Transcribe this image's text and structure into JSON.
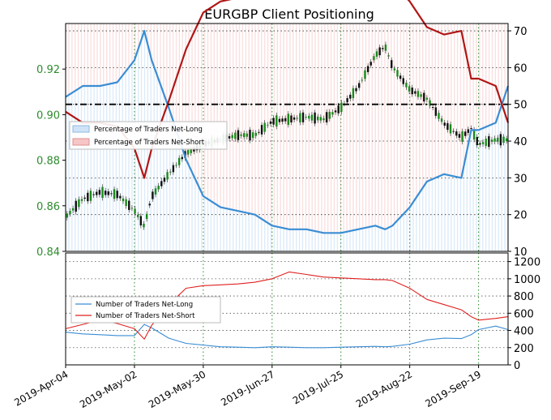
{
  "chart_data": [
    {
      "panel": "top",
      "type": "line",
      "title": "EURGBP Client Positioning",
      "x": [
        "2019-Apr-04",
        "2019-Apr-11",
        "2019-Apr-18",
        "2019-Apr-25",
        "2019-May-02",
        "2019-May-06",
        "2019-May-09",
        "2019-May-16",
        "2019-May-23",
        "2019-May-30",
        "2019-Jun-06",
        "2019-Jun-13",
        "2019-Jun-20",
        "2019-Jun-27",
        "2019-Jul-04",
        "2019-Jul-11",
        "2019-Jul-18",
        "2019-Jul-25",
        "2019-Aug-01",
        "2019-Aug-08",
        "2019-Aug-12",
        "2019-Aug-15",
        "2019-Aug-22",
        "2019-Aug-29",
        "2019-Sep-05",
        "2019-Sep-12",
        "2019-Sep-16",
        "2019-Sep-19",
        "2019-Sep-26",
        "2019-Oct-01"
      ],
      "price_axis": {
        "side": "left",
        "ylim": [
          0.84,
          0.94
        ],
        "ticks": [
          "0.84",
          "0.86",
          "0.88",
          "0.90",
          "0.92"
        ],
        "color": "#2e8b2e"
      },
      "percent_axis": {
        "side": "right",
        "ylim": [
          10,
          72
        ],
        "ticks": [
          "10",
          "20",
          "30",
          "40",
          "50",
          "60",
          "70"
        ]
      },
      "reference_line": {
        "value": 50,
        "style": "dash-dot",
        "color": "#000000"
      },
      "legend": {
        "placement": "center-left",
        "items": [
          "Percentage of Traders Net-Long",
          "Percentage of Traders Net-Short"
        ]
      },
      "series": [
        {
          "name": "EURGBP",
          "axis": "price",
          "color": "#1a8a1a",
          "values": [
            0.855,
            0.863,
            0.866,
            0.865,
            0.858,
            0.851,
            0.864,
            0.874,
            0.883,
            0.887,
            0.889,
            0.891,
            0.891,
            0.897,
            0.898,
            0.899,
            0.898,
            0.903,
            0.912,
            0.926,
            0.93,
            0.921,
            0.911,
            0.907,
            0.896,
            0.89,
            0.894,
            0.887,
            0.889,
            0.889
          ]
        },
        {
          "name": "Percentage of Traders Net-Long",
          "axis": "percent",
          "color": "#3a8dd4",
          "values": [
            52,
            55,
            55,
            56,
            62,
            70,
            62,
            49,
            35,
            25,
            22,
            21,
            20,
            17,
            16,
            16,
            15,
            15,
            16,
            17,
            16,
            17,
            22,
            29,
            31,
            30,
            43,
            43,
            45,
            55
          ]
        },
        {
          "name": "Percentage of Traders Net-Short",
          "axis": "percent",
          "color": "#b01616",
          "values": [
            48,
            45,
            45,
            44,
            38,
            30,
            38,
            51,
            65,
            75,
            78,
            79,
            80,
            83,
            84,
            84,
            85,
            85,
            84,
            83,
            84,
            83,
            78,
            71,
            69,
            70,
            57,
            57,
            55,
            45
          ]
        }
      ]
    },
    {
      "panel": "bottom",
      "type": "line",
      "x": [
        "2019-Apr-04",
        "2019-Apr-11",
        "2019-Apr-18",
        "2019-Apr-25",
        "2019-May-02",
        "2019-May-06",
        "2019-May-09",
        "2019-May-16",
        "2019-May-23",
        "2019-May-30",
        "2019-Jun-06",
        "2019-Jun-13",
        "2019-Jun-20",
        "2019-Jun-27",
        "2019-Jul-04",
        "2019-Jul-11",
        "2019-Jul-18",
        "2019-Jul-25",
        "2019-Aug-01",
        "2019-Aug-08",
        "2019-Aug-12",
        "2019-Aug-15",
        "2019-Aug-22",
        "2019-Aug-29",
        "2019-Sep-05",
        "2019-Sep-12",
        "2019-Sep-16",
        "2019-Sep-19",
        "2019-Sep-26",
        "2019-Oct-01"
      ],
      "xtick_labels": [
        "2019-Apr-04",
        "2019-May-02",
        "2019-May-30",
        "2019-Jun-27",
        "2019-Jul-25",
        "2019-Aug-22",
        "2019-Sep-19"
      ],
      "yaxis": {
        "side": "right",
        "ylim": [
          0,
          1300
        ],
        "ticks": [
          "0",
          "200",
          "400",
          "600",
          "800",
          "1000",
          "1200"
        ]
      },
      "legend": {
        "placement": "center-left",
        "items": [
          "Number of Traders Net-Long",
          "Number of Traders Net-Short"
        ]
      },
      "series": [
        {
          "name": "Number of Traders Net-Long",
          "color": "#3a8dd4",
          "values": [
            380,
            360,
            350,
            340,
            340,
            470,
            430,
            310,
            250,
            230,
            210,
            205,
            200,
            210,
            205,
            200,
            200,
            205,
            210,
            215,
            210,
            215,
            240,
            290,
            310,
            305,
            350,
            410,
            450,
            410
          ]
        },
        {
          "name": "Number of Traders Net-Short",
          "color": "#e02020",
          "values": [
            420,
            470,
            520,
            480,
            420,
            300,
            460,
            700,
            890,
            920,
            930,
            940,
            960,
            1000,
            1080,
            1050,
            1020,
            1010,
            1000,
            990,
            990,
            980,
            890,
            760,
            700,
            640,
            560,
            520,
            540,
            560
          ]
        }
      ]
    }
  ]
}
